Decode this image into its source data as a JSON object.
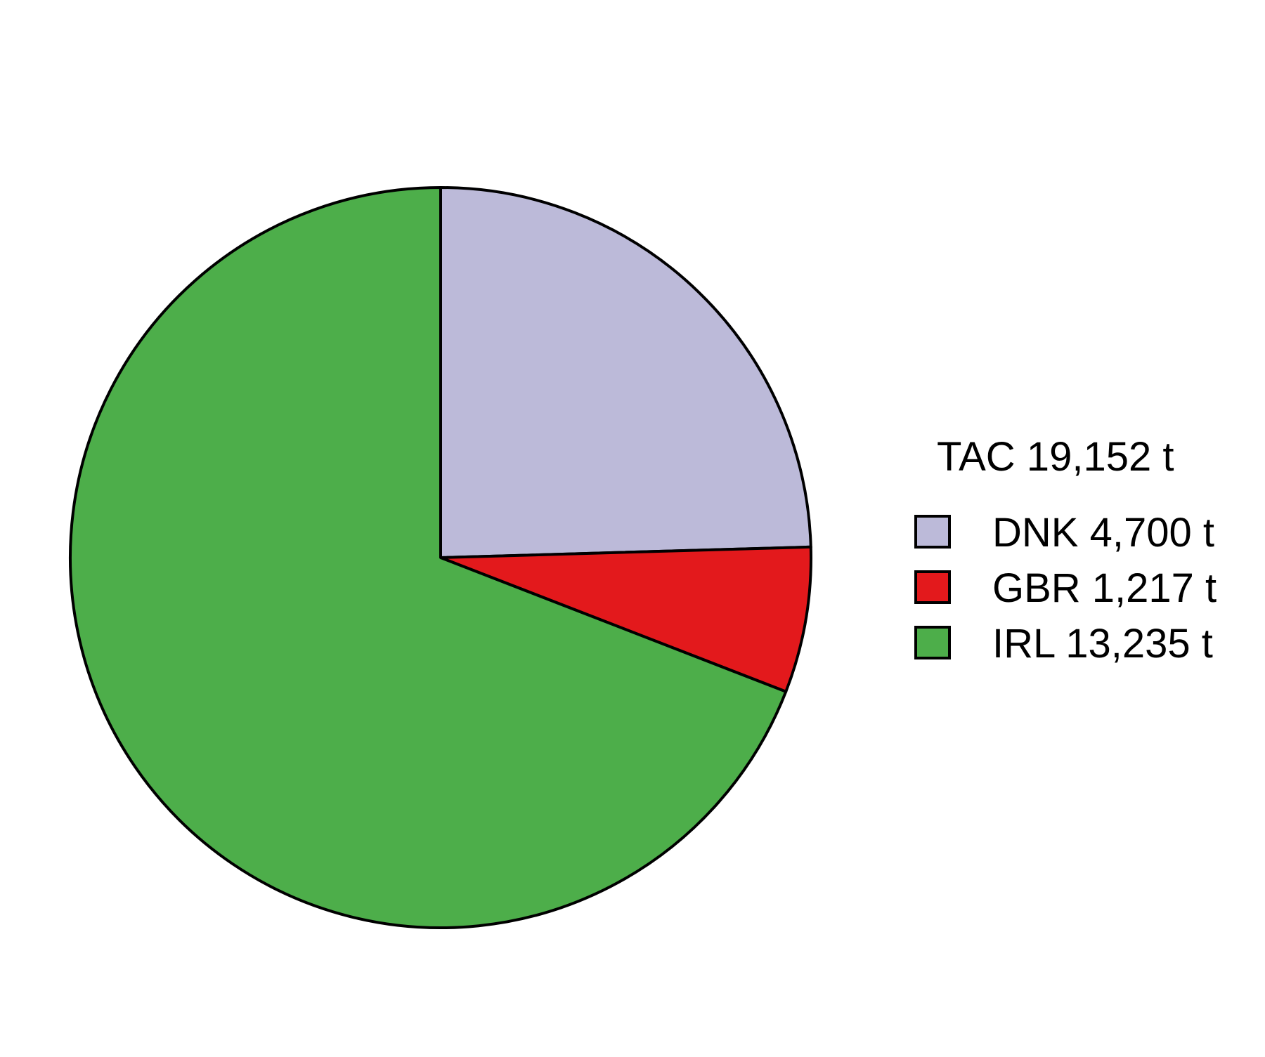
{
  "chart_data": {
    "type": "pie",
    "legend_title": "TAC 19,152 t",
    "legend_position": "right",
    "categories": [
      "DNK",
      "GBR",
      "IRL"
    ],
    "values": [
      4700,
      1217,
      13235
    ],
    "labels": [
      "DNK 4,700 t",
      "GBR 1,217 t",
      "IRL 13,235 t"
    ],
    "colors": [
      "#bcbad9",
      "#e3191c",
      "#4dae4a"
    ],
    "start_angle_deg": 90,
    "direction": "clockwise",
    "outline_color": "#000000"
  }
}
